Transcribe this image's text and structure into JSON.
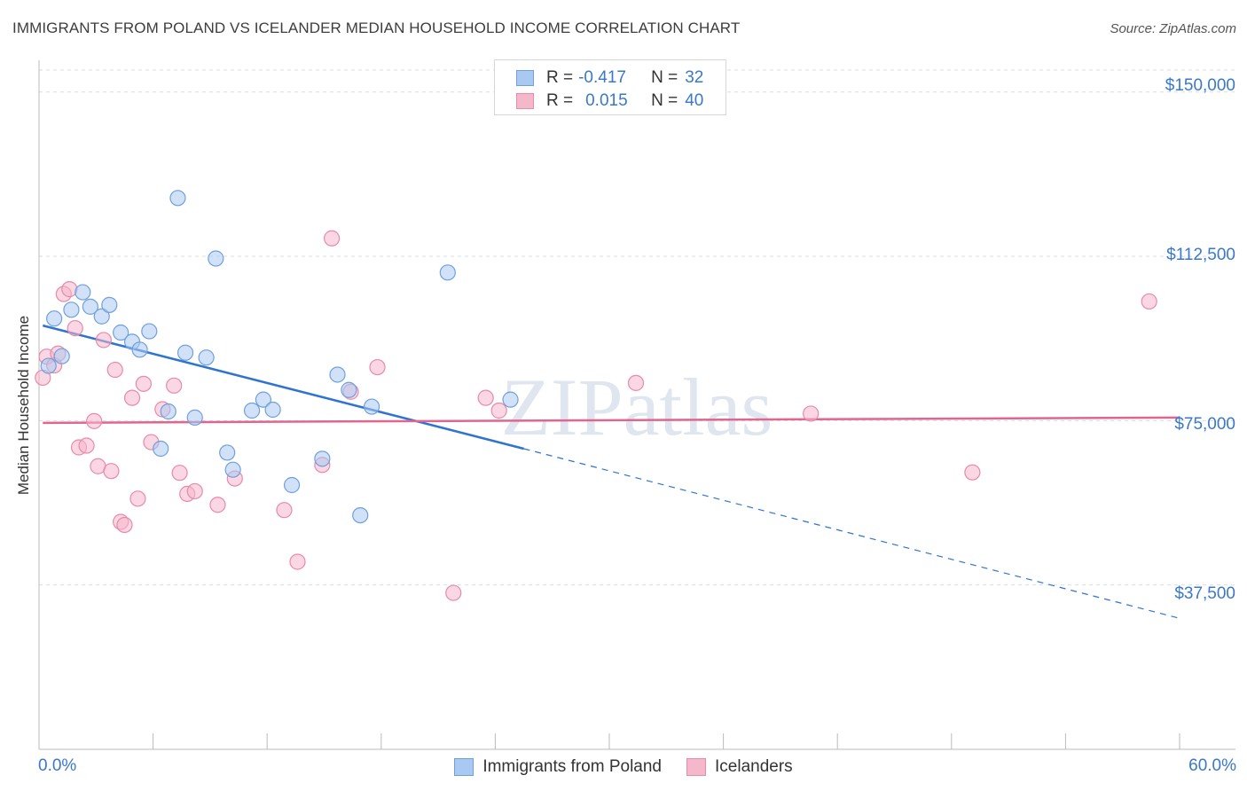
{
  "title": "IMMIGRANTS FROM POLAND VS ICELANDER MEDIAN HOUSEHOLD INCOME CORRELATION CHART",
  "source": "Source: ZipAtlas.com",
  "watermark": "ZIPatlas",
  "legend_top": {
    "rows": [
      {
        "r_label": "R =",
        "r_value": "-0.417",
        "n_label": "N =",
        "n_value": "32",
        "color": "#a9c8f2"
      },
      {
        "r_label": "R =",
        "r_value": "0.015",
        "n_label": "N =",
        "n_value": "40",
        "color": "#f5b7ca"
      }
    ]
  },
  "legend_bottom": [
    {
      "label": "Immigrants from Poland",
      "color": "#a9c8f2"
    },
    {
      "label": "Icelanders",
      "color": "#f5b7ca"
    }
  ],
  "chart_data": {
    "type": "scatter",
    "title": "IMMIGRANTS FROM POLAND VS ICELANDER MEDIAN HOUSEHOLD INCOME CORRELATION CHART",
    "xlabel": "",
    "ylabel": "Median Household Income",
    "xlim": [
      0,
      60
    ],
    "ylim": [
      0,
      155000
    ],
    "x_tick_labels": [
      "0.0%",
      "60.0%"
    ],
    "y_ticks": [
      37500,
      75000,
      112500,
      150000
    ],
    "y_tick_labels": [
      "$37,500",
      "$75,000",
      "$112,500",
      "$150,000"
    ],
    "series": [
      {
        "name": "Immigrants from Poland",
        "color": "#a9c8f2",
        "stroke": "#6fa0dc",
        "trend_color": "#2f74d0",
        "trend": {
          "x0": 0.2,
          "y0": 96700,
          "x1": 25.5,
          "y1": 68600,
          "dashed_to_x": 60,
          "dashed_to_y": 29900
        },
        "points": [
          [
            0.5,
            87500
          ],
          [
            0.8,
            98300
          ],
          [
            1.2,
            89700
          ],
          [
            1.7,
            100300
          ],
          [
            2.3,
            104300
          ],
          [
            2.7,
            101000
          ],
          [
            3.3,
            98800
          ],
          [
            3.7,
            101400
          ],
          [
            4.3,
            95100
          ],
          [
            4.9,
            93000
          ],
          [
            5.3,
            91200
          ],
          [
            5.8,
            95400
          ],
          [
            6.4,
            68600
          ],
          [
            6.8,
            77100
          ],
          [
            7.3,
            125800
          ],
          [
            7.7,
            90500
          ],
          [
            8.2,
            75700
          ],
          [
            8.8,
            89400
          ],
          [
            9.3,
            112000
          ],
          [
            9.9,
            67700
          ],
          [
            10.2,
            63800
          ],
          [
            11.2,
            77300
          ],
          [
            11.8,
            79800
          ],
          [
            12.3,
            77500
          ],
          [
            13.3,
            60300
          ],
          [
            14.9,
            66300
          ],
          [
            15.7,
            85500
          ],
          [
            16.3,
            82000
          ],
          [
            16.9,
            53400
          ],
          [
            17.5,
            78200
          ],
          [
            21.5,
            108800
          ],
          [
            24.8,
            79800
          ]
        ]
      },
      {
        "name": "Icelanders",
        "color": "#f5b7ca",
        "stroke": "#e88aaa",
        "trend_color": "#e0668f",
        "trend": {
          "x0": 0.2,
          "y0": 74500,
          "x1": 60,
          "y1": 75700
        },
        "points": [
          [
            0.2,
            84800
          ],
          [
            0.4,
            89600
          ],
          [
            0.8,
            87600
          ],
          [
            1.0,
            90300
          ],
          [
            1.3,
            103900
          ],
          [
            1.6,
            105000
          ],
          [
            1.9,
            96100
          ],
          [
            2.1,
            68900
          ],
          [
            2.5,
            69300
          ],
          [
            2.9,
            74900
          ],
          [
            3.1,
            64600
          ],
          [
            3.4,
            93400
          ],
          [
            3.8,
            63500
          ],
          [
            4.0,
            86600
          ],
          [
            4.3,
            51900
          ],
          [
            4.5,
            51200
          ],
          [
            4.9,
            80200
          ],
          [
            5.2,
            57200
          ],
          [
            5.5,
            83400
          ],
          [
            5.9,
            70100
          ],
          [
            6.5,
            77600
          ],
          [
            7.1,
            83000
          ],
          [
            7.4,
            63100
          ],
          [
            7.8,
            58300
          ],
          [
            8.2,
            58900
          ],
          [
            9.4,
            55800
          ],
          [
            10.3,
            61800
          ],
          [
            12.9,
            54600
          ],
          [
            13.6,
            42800
          ],
          [
            14.9,
            64900
          ],
          [
            15.4,
            116600
          ],
          [
            16.4,
            81600
          ],
          [
            17.8,
            87200
          ],
          [
            21.8,
            35700
          ],
          [
            23.5,
            80200
          ],
          [
            24.2,
            77300
          ],
          [
            31.4,
            83600
          ],
          [
            40.6,
            76600
          ],
          [
            49.1,
            63200
          ],
          [
            58.4,
            102200
          ]
        ]
      }
    ]
  }
}
